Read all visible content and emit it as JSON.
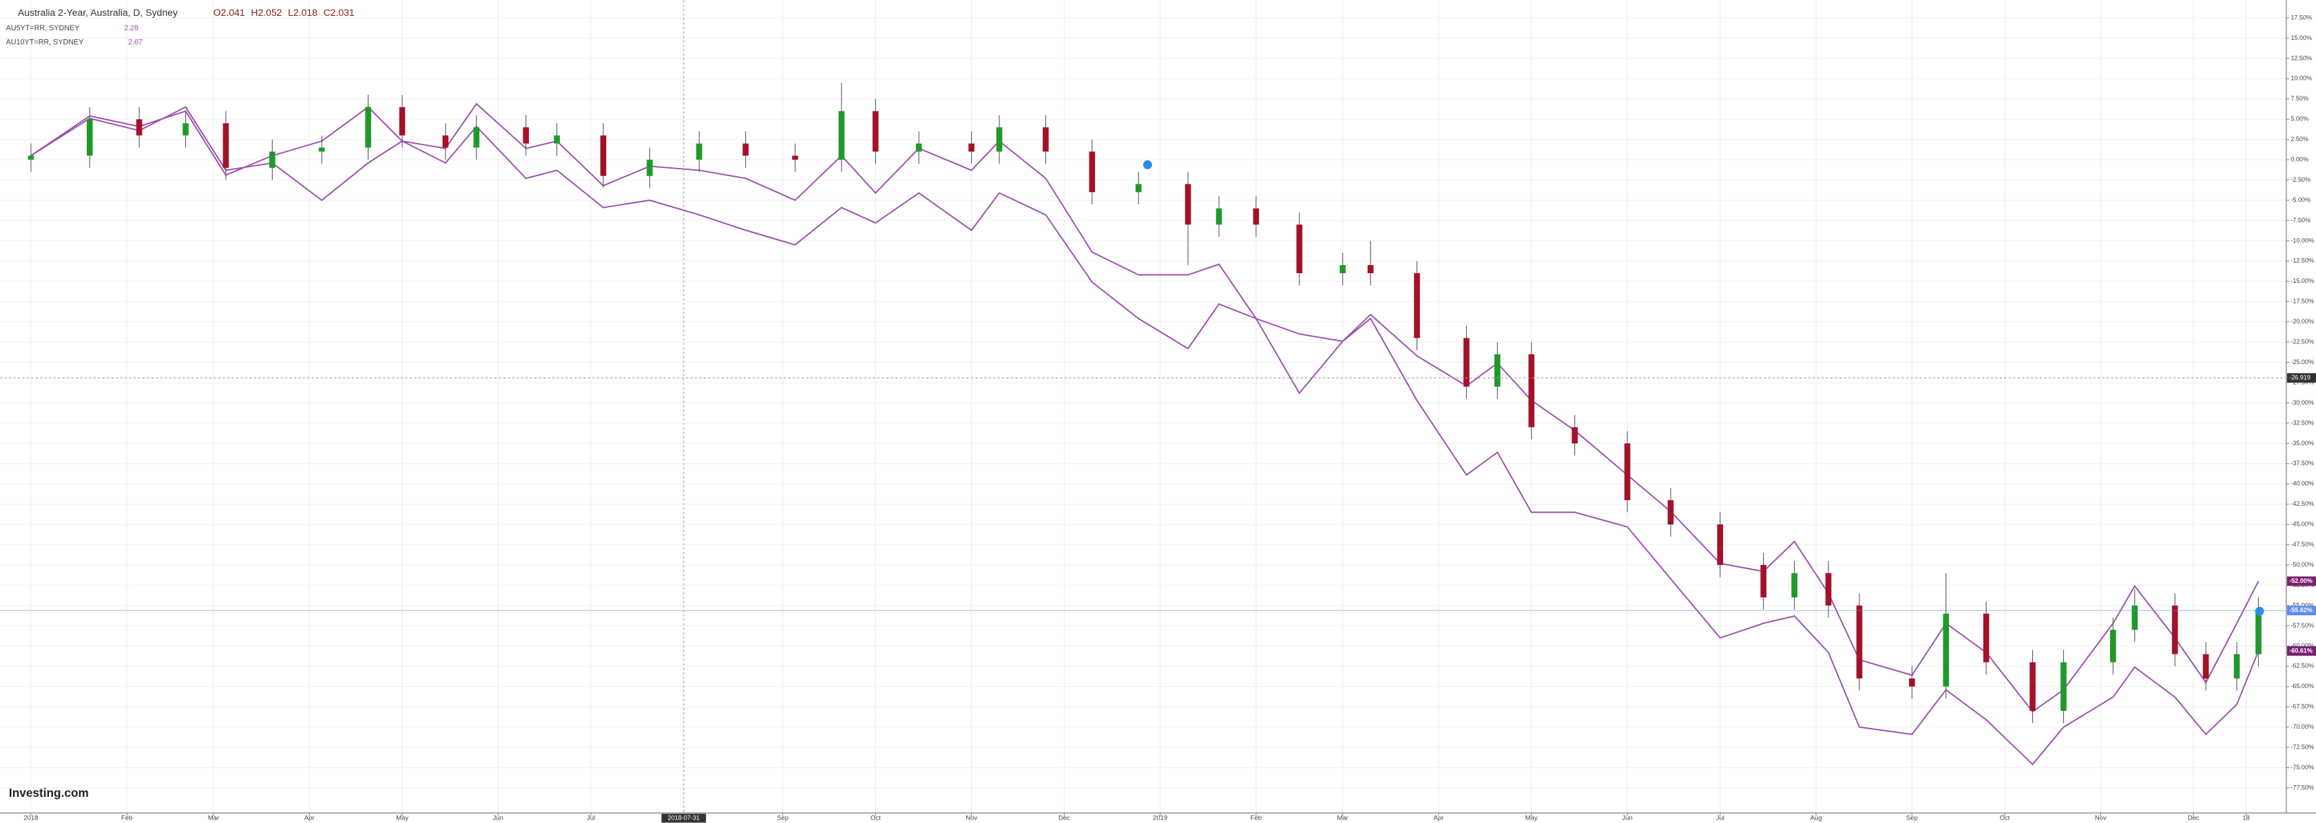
{
  "chart_data": {
    "type": "candlestick",
    "title": "Australia 2-Year, Australia, D, Sydney",
    "ohlc_labels": [
      "O2.041",
      "H2.052",
      "L2.018",
      "C2.031"
    ],
    "logo": "Investing.com",
    "x": [
      "2018-01-01",
      "2018-01-20",
      "2018-02-05",
      "2018-02-20",
      "2018-03-05",
      "2018-03-20",
      "2018-04-05",
      "2018-04-20",
      "2018-05-01",
      "2018-05-15",
      "2018-05-25",
      "2018-06-10",
      "2018-06-20",
      "2018-07-05",
      "2018-07-20",
      "2018-08-05",
      "2018-08-20",
      "2018-09-05",
      "2018-09-20",
      "2018-10-01",
      "2018-10-15",
      "2018-11-01",
      "2018-11-10",
      "2018-11-25",
      "2018-12-10",
      "2018-12-25",
      "2019-01-10",
      "2019-01-20",
      "2019-02-01",
      "2019-02-15",
      "2019-03-01",
      "2019-03-10",
      "2019-03-25",
      "2019-04-10",
      "2019-04-20",
      "2019-05-01",
      "2019-05-15",
      "2019-06-01",
      "2019-06-15",
      "2019-07-01",
      "2019-07-15",
      "2019-07-25",
      "2019-08-05",
      "2019-08-15",
      "2019-09-01",
      "2019-09-12",
      "2019-09-25",
      "2019-10-10",
      "2019-10-20",
      "2019-11-05",
      "2019-11-12",
      "2019-11-25",
      "2019-12-05",
      "2019-12-15",
      "2019-12-22"
    ],
    "open": [
      0,
      0.5,
      5,
      3,
      4.5,
      -1,
      1,
      1.5,
      6.5,
      3,
      1.5,
      4,
      2,
      3,
      -2,
      0,
      2,
      0.5,
      0,
      6,
      1,
      2,
      1,
      4,
      1,
      -4,
      -3,
      -8,
      -6,
      -8,
      -14,
      -13,
      -14,
      -22,
      -28,
      -24,
      -33,
      -35,
      -42,
      -45,
      -50,
      -54,
      -51,
      -55,
      -64,
      -65,
      -56,
      -62,
      -68,
      -62,
      -58,
      -55,
      -61,
      -64,
      -61
    ],
    "high": [
      2,
      6.5,
      6.5,
      6,
      6,
      2.5,
      3,
      8,
      8,
      4.5,
      5.5,
      5.5,
      4.5,
      4.5,
      1.5,
      3.5,
      3.5,
      2,
      9.5,
      7.5,
      3.5,
      3.5,
      5.5,
      5.5,
      2.5,
      -1.5,
      -1.5,
      -4.5,
      -4.5,
      -6.5,
      -11.5,
      -10,
      -12.5,
      -20.5,
      -22.5,
      -22.5,
      -31.5,
      -33.5,
      -40.5,
      -43.5,
      -48.5,
      -49.5,
      -49.5,
      -53.5,
      -62.5,
      -51,
      -54.5,
      -60.5,
      -60.5,
      -56.5,
      -53,
      -53.5,
      -59.5,
      -59.5,
      -54
    ],
    "low": [
      -1.5,
      -1,
      1.5,
      1.5,
      -2.5,
      -2.5,
      -0.5,
      0,
      1.5,
      0,
      0,
      0.5,
      0.5,
      -3.5,
      -3.5,
      -1.5,
      -1,
      -1.5,
      -1.5,
      -0.5,
      -0.5,
      -0.5,
      -0.5,
      -0.5,
      -5.5,
      -5.5,
      -13,
      -9.5,
      -9.5,
      -15.5,
      -15.5,
      -15.5,
      -23.5,
      -29.5,
      -29.5,
      -34.5,
      -36.5,
      -43.5,
      -46.5,
      -51.5,
      -55.5,
      -55.5,
      -56.5,
      -65.5,
      -66.5,
      -66.5,
      -63.5,
      -69.5,
      -69.5,
      -63.5,
      -59.5,
      -62.5,
      -65.5,
      -65.5,
      -62.5
    ],
    "close": [
      0.5,
      5,
      3,
      4.5,
      -1,
      1,
      1.5,
      6.5,
      3,
      1.5,
      4,
      2,
      3,
      -2,
      0,
      2,
      0.5,
      0,
      6,
      1,
      2,
      1,
      4,
      1,
      -4,
      -3,
      -8,
      -6,
      -8,
      -14,
      -13,
      -14,
      -22,
      -28,
      -24,
      -33,
      -35,
      -42,
      -45,
      -50,
      -54,
      -51,
      -55,
      -64,
      -65,
      -56,
      -62,
      -68,
      -62,
      -58,
      -55,
      -61,
      -64,
      -61,
      -55.62
    ],
    "up_color": "#1f9a2a",
    "down_color": "#a3122a",
    "last_value_label": "-55.62%",
    "last_color": "#5b8def",
    "series": [
      {
        "name": "AU5YT=RR, SYDNEY",
        "legend_value": 2.28,
        "color": "#9c4fae",
        "last_value_label": "-52.00%",
        "values": [
          0.5,
          5.4,
          4.1,
          6,
          -1.9,
          0.5,
          2.3,
          6.5,
          2.3,
          1.4,
          6.9,
          1.4,
          2.3,
          -3.2,
          -0.8,
          -1.3,
          -2.3,
          -5,
          0.5,
          -4.1,
          1.4,
          -1.3,
          2.3,
          -2.3,
          -11.4,
          -14.2,
          -14.2,
          -12.9,
          -19.6,
          -21.5,
          -22.4,
          -19.1,
          -24.2,
          -27.9,
          -25.1,
          -29.7,
          -33.4,
          -38.9,
          -43.4,
          -49.8,
          -50.8,
          -47.1,
          -53.5,
          -61.7,
          -63.6,
          -57.2,
          -60.8,
          -68.1,
          -65.4,
          -57.2,
          -52.6,
          -59,
          -64.5,
          -57.2,
          -52
        ]
      },
      {
        "name": "AU10YT=RR, SYDNEY",
        "legend_value": 2.67,
        "color": "#9c4fae",
        "last_value_label": "-60.61%",
        "values": [
          0.5,
          5.1,
          3.6,
          6.5,
          -1.3,
          -0.4,
          -5,
          -0.4,
          2.3,
          -0.4,
          4.1,
          -2.3,
          -1.3,
          -5.9,
          -5,
          -6.8,
          -8.7,
          -10.5,
          -5.9,
          -7.8,
          -4.1,
          -8.7,
          -4.1,
          -6.8,
          -15.1,
          -19.6,
          -23.3,
          -17.8,
          -19.6,
          -28.8,
          -22.4,
          -19.6,
          -29.7,
          -38.9,
          -36.1,
          -43.5,
          -43.5,
          -45.3,
          -51.7,
          -59,
          -57.2,
          -56.3,
          -60.8,
          -70,
          -70.9,
          -65.4,
          -69.1,
          -74.6,
          -70,
          -66.3,
          -62.6,
          -66.3,
          -70.9,
          -67.2,
          -60.61
        ]
      }
    ],
    "crosshair": {
      "x": "2018-07-31",
      "y": -26.919
    },
    "xlim": [
      "2017-12-22",
      "2019-12-31"
    ],
    "xticks": [
      {
        "value": "2018-01-01",
        "label": "2018"
      },
      {
        "value": "2018-02-01",
        "label": "Feb"
      },
      {
        "value": "2018-03-01",
        "label": "Mar"
      },
      {
        "value": "2018-04-01",
        "label": "Apr"
      },
      {
        "value": "2018-05-01",
        "label": "May"
      },
      {
        "value": "2018-06-01",
        "label": "Jun"
      },
      {
        "value": "2018-07-01",
        "label": "Jul"
      },
      {
        "value": "2018-09-01",
        "label": "Sep"
      },
      {
        "value": "2018-10-01",
        "label": "Oct"
      },
      {
        "value": "2018-11-01",
        "label": "Nov"
      },
      {
        "value": "2018-12-01",
        "label": "Dec"
      },
      {
        "value": "2019-01-01",
        "label": "2019"
      },
      {
        "value": "2019-02-01",
        "label": "Feb"
      },
      {
        "value": "2019-03-01",
        "label": "Mar"
      },
      {
        "value": "2019-04-01",
        "label": "Apr"
      },
      {
        "value": "2019-05-01",
        "label": "May"
      },
      {
        "value": "2019-06-01",
        "label": "Jun"
      },
      {
        "value": "2019-07-01",
        "label": "Jul"
      },
      {
        "value": "2019-08-01",
        "label": "Aug"
      },
      {
        "value": "2019-09-01",
        "label": "Sep"
      },
      {
        "value": "2019-10-01",
        "label": "Oct"
      },
      {
        "value": "2019-11-01",
        "label": "Nov"
      },
      {
        "value": "2019-12-01",
        "label": "Dec"
      },
      {
        "value": "2019-12-18",
        "label": "18"
      }
    ],
    "ylim": [
      -80.6,
      19.7
    ],
    "yticks": [
      {
        "value": 17.5,
        "label": "17.50%"
      },
      {
        "value": 15,
        "label": "15.00%"
      },
      {
        "value": 12.5,
        "label": "12.50%"
      },
      {
        "value": 10,
        "label": "10.00%"
      },
      {
        "value": 7.5,
        "label": "7.50%"
      },
      {
        "value": 5,
        "label": "5.00%"
      },
      {
        "value": 2.5,
        "label": "2.50%"
      },
      {
        "value": 0,
        "label": "0.00%"
      },
      {
        "value": -2.5,
        "label": "-2.50%"
      },
      {
        "value": -5,
        "label": "-5.00%"
      },
      {
        "value": -7.5,
        "label": "-7.50%"
      },
      {
        "value": -10,
        "label": "-10.00%"
      },
      {
        "value": -12.5,
        "label": "-12.50%"
      },
      {
        "value": -15,
        "label": "-15.00%"
      },
      {
        "value": -17.5,
        "label": "-17.50%"
      },
      {
        "value": -20,
        "label": "-20.00%"
      },
      {
        "value": -22.5,
        "label": "-22.50%"
      },
      {
        "value": -25,
        "label": "-25.00%"
      },
      {
        "value": -27.5,
        "label": "-27.50%"
      },
      {
        "value": -30,
        "label": "-30.00%"
      },
      {
        "value": -32.5,
        "label": "-32.50%"
      },
      {
        "value": -35,
        "label": "-35.00%"
      },
      {
        "value": -37.5,
        "label": "-37.50%"
      },
      {
        "value": -40,
        "label": "-40.00%"
      },
      {
        "value": -42.5,
        "label": "-42.50%"
      },
      {
        "value": -45,
        "label": "-45.00%"
      },
      {
        "value": -47.5,
        "label": "-47.50%"
      },
      {
        "value": -50,
        "label": "-50.00%"
      },
      {
        "value": -52.5,
        "label": "-52.50%"
      },
      {
        "value": -55,
        "label": "-55.00%"
      },
      {
        "value": -57.5,
        "label": "-57.50%"
      },
      {
        "value": -60,
        "label": "-60.00%"
      },
      {
        "value": -62.5,
        "label": "-62.50%"
      },
      {
        "value": -65,
        "label": "-65.00%"
      },
      {
        "value": -67.5,
        "label": "-67.50%"
      },
      {
        "value": -70,
        "label": "-70.00%"
      },
      {
        "value": -72.5,
        "label": "-72.50%"
      },
      {
        "value": -75,
        "label": "-75.00%"
      },
      {
        "value": -77.5,
        "label": "-77.50%"
      }
    ],
    "grid": true
  }
}
